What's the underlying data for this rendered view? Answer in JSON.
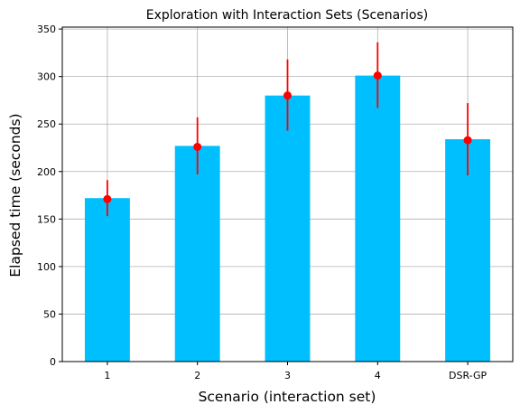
{
  "chart_data": {
    "type": "bar",
    "title": "Exploration with Interaction Sets (Scenarios)",
    "xlabel": "Scenario (interaction set)",
    "ylabel": "Elapsed time (seconds)",
    "categories": [
      "1",
      "2",
      "3",
      "4",
      "DSR-GP"
    ],
    "values": [
      172,
      227,
      280,
      301,
      234
    ],
    "points": [
      171,
      226,
      280,
      301,
      233
    ],
    "error_low": [
      153,
      197,
      243,
      267,
      196
    ],
    "error_high": [
      191,
      257,
      318,
      336,
      272
    ],
    "ylim": [
      0,
      352
    ],
    "yticks": [
      0,
      50,
      100,
      150,
      200,
      250,
      300,
      350
    ],
    "grid": true,
    "bar_color": "#00bfff",
    "error_color": "#ff0000",
    "grid_color": "#b0b0b0"
  }
}
